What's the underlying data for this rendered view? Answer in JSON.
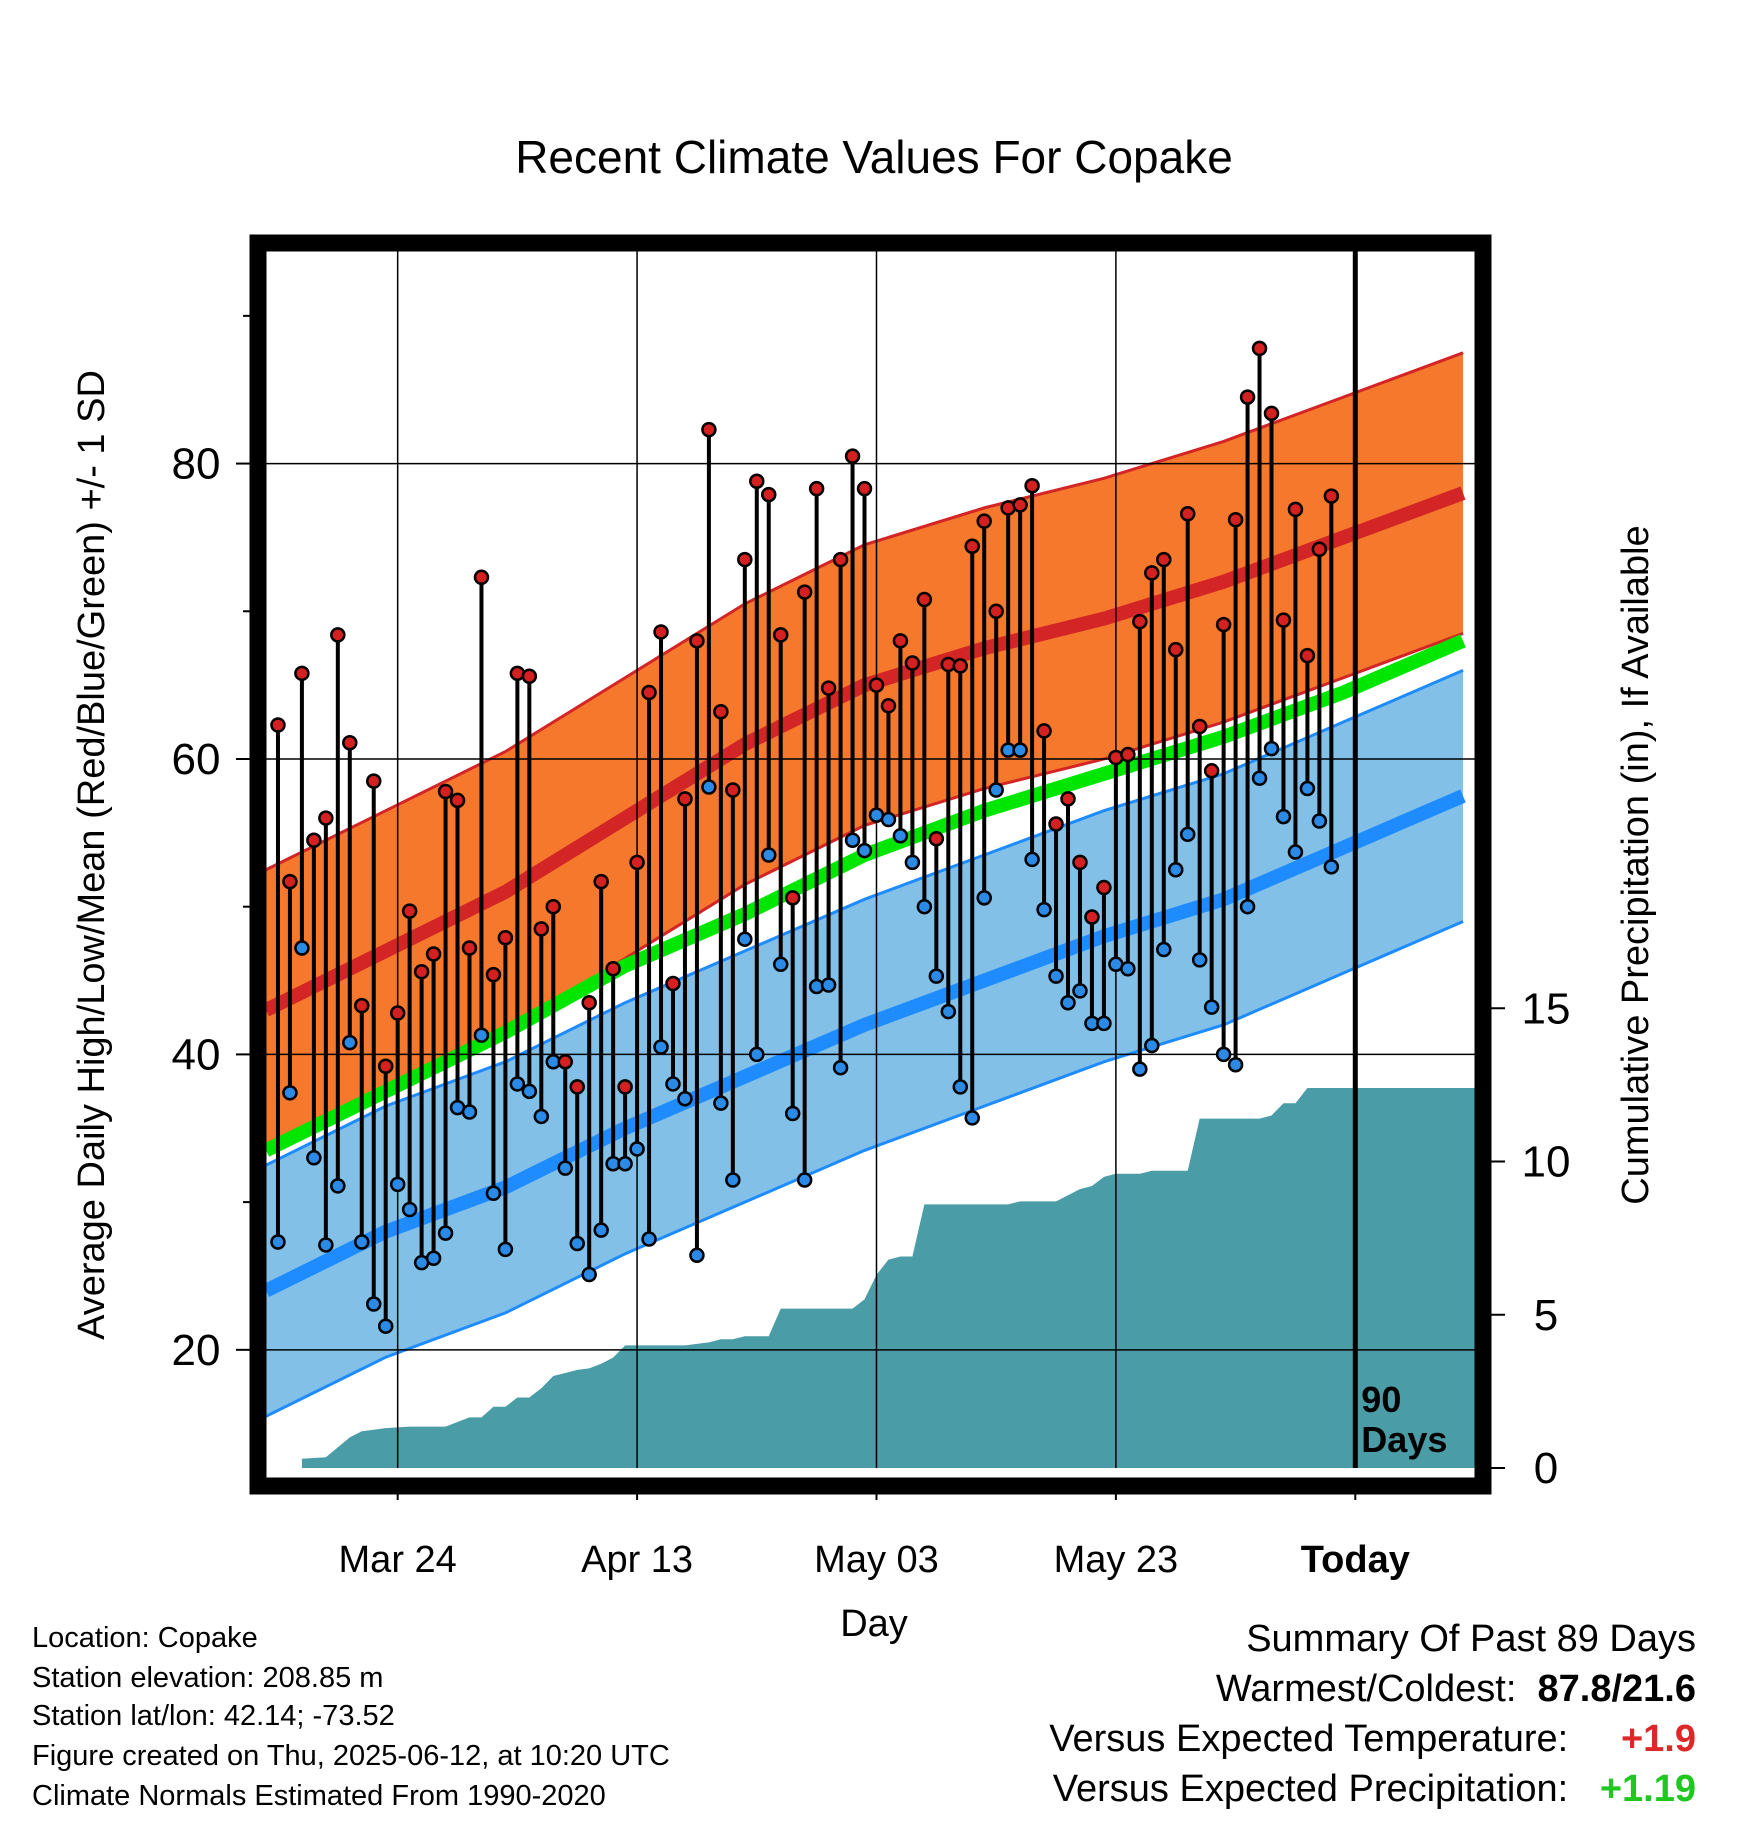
{
  "chart_data": {
    "type": "line",
    "title": "Recent Climate Values For Copake",
    "xlabel": "Day",
    "ylabel_left": "Average Daily High/Low/Mean (Red/Blue/Green) +/- 1 SD",
    "ylabel_right": "Cumulative Precipitation (in), If Available",
    "x_tick_labels": [
      "Mar 24",
      "Apr 13",
      "May 03",
      "May 23",
      "Today"
    ],
    "x_ticks_day": [
      11,
      31,
      51,
      71,
      91
    ],
    "y_left_ticks": [
      20,
      40,
      60,
      80
    ],
    "y_left_range": [
      12,
      95
    ],
    "y_right_ticks": [
      0,
      5,
      10,
      15
    ],
    "y_right_range": [
      0,
      40
    ],
    "x_range_day": [
      0,
      101
    ],
    "today_marker_label": "90 Days",
    "grid": true,
    "normals": {
      "day": [
        0,
        10,
        20,
        30,
        40,
        50,
        60,
        70,
        80,
        90,
        100
      ],
      "high_mean": [
        43,
        47,
        51,
        56,
        61,
        65,
        67.5,
        69.5,
        72,
        75,
        78
      ],
      "high_sd": 9.5,
      "low_mean": [
        24,
        28,
        31,
        35,
        38.5,
        42,
        45,
        48,
        50.5,
        54,
        57.5
      ],
      "low_sd": 8.5,
      "daily_mean": [
        33.5,
        37.5,
        41.5,
        46,
        49.5,
        53.5,
        56.5,
        59,
        61.5,
        64.5,
        68
      ]
    },
    "observed": {
      "high": [
        62.3,
        51.7,
        65.8,
        54.5,
        56,
        68.4,
        61.1,
        43.3,
        58.5,
        39.2,
        42.8,
        49.7,
        45.6,
        46.8,
        57.8,
        57.2,
        47.2,
        72.3,
        45.4,
        47.9,
        65.8,
        65.6,
        48.5,
        50,
        39.5,
        37.8,
        43.5,
        51.7,
        45.8,
        37.8,
        53,
        64.5,
        68.6,
        44.8,
        57.3,
        68,
        82.3,
        63.2,
        57.9,
        73.5,
        78.8,
        77.9,
        68.4,
        50.6,
        71.3,
        78.3,
        64.8,
        73.5,
        80.5,
        78.3,
        65,
        63.6,
        68,
        66.5,
        70.8,
        54.6,
        66.4,
        66.3,
        74.4,
        76.1,
        70,
        77,
        77.2,
        78.5,
        61.9,
        55.6,
        57.3,
        53,
        49.3,
        51.3,
        60.1,
        60.3,
        69.3,
        72.6,
        73.5,
        67.4,
        76.6,
        62.2,
        59.2,
        69.1,
        76.2,
        84.5,
        87.8,
        83.4,
        69.4,
        76.9,
        67,
        74.2,
        77.8
      ],
      "low": [
        27.3,
        37.4,
        47.2,
        33,
        27.1,
        31.1,
        40.8,
        27.3,
        23.1,
        21.6,
        31.2,
        29.5,
        25.9,
        26.2,
        27.9,
        36.4,
        36.1,
        41.3,
        30.6,
        26.8,
        38,
        37.5,
        35.8,
        39.5,
        32.3,
        27.2,
        25.1,
        28.1,
        32.6,
        32.6,
        33.6,
        27.5,
        40.5,
        38,
        37,
        26.4,
        58.1,
        36.7,
        31.5,
        47.8,
        40,
        53.5,
        46.1,
        36,
        31.5,
        44.6,
        44.7,
        39.1,
        54.5,
        53.8,
        56.2,
        55.9,
        54.8,
        53,
        50,
        45.3,
        42.9,
        37.8,
        35.7,
        50.6,
        57.9,
        60.6,
        60.6,
        53.2,
        49.8,
        45.3,
        43.5,
        44.3,
        42.1,
        42.1,
        46.1,
        45.8,
        39,
        40.6,
        47.1,
        52.5,
        54.9,
        46.4,
        43.2,
        40,
        39.3,
        50,
        58.7,
        60.7,
        56.1,
        53.7,
        58,
        55.8,
        52.7
      ]
    },
    "cumulative_precip": {
      "day": [
        3,
        5,
        7,
        8,
        9,
        10,
        12,
        15,
        17,
        18,
        19,
        20,
        21,
        22,
        23,
        24,
        25,
        26,
        27,
        28,
        29,
        30,
        31,
        33,
        35,
        37,
        38,
        39,
        40,
        41,
        42,
        43,
        44,
        45,
        46,
        47,
        48,
        49,
        50,
        51,
        52,
        53,
        54,
        55,
        56,
        57,
        58,
        59,
        60,
        61,
        62,
        63,
        64,
        65,
        66,
        67,
        68,
        69,
        70,
        71,
        72,
        73,
        74,
        75,
        76,
        77,
        78,
        79,
        80,
        81,
        82,
        83,
        84,
        85,
        86,
        87,
        88,
        89,
        90,
        95
      ],
      "inches": [
        0.3,
        0.35,
        1.0,
        1.2,
        1.25,
        1.3,
        1.35,
        1.35,
        1.65,
        1.65,
        2.0,
        2.0,
        2.3,
        2.3,
        2.6,
        3.0,
        3.1,
        3.2,
        3.25,
        3.4,
        3.6,
        4.0,
        4.0,
        4.0,
        4.0,
        4.1,
        4.2,
        4.2,
        4.3,
        4.3,
        4.3,
        5.2,
        5.2,
        5.2,
        5.2,
        5.2,
        5.2,
        5.2,
        5.5,
        6.3,
        6.8,
        6.9,
        6.9,
        8.6,
        8.6,
        8.6,
        8.6,
        8.6,
        8.6,
        8.6,
        8.6,
        8.7,
        8.7,
        8.7,
        8.7,
        8.9,
        9.1,
        9.2,
        9.5,
        9.6,
        9.6,
        9.6,
        9.7,
        9.7,
        9.7,
        9.7,
        11.4,
        11.4,
        11.4,
        11.4,
        11.4,
        11.4,
        11.5,
        11.9,
        11.9,
        12.4,
        12.4,
        12.4,
        12.4,
        12.4
      ]
    },
    "colors": {
      "high_band": "#f5782d",
      "high_line": "#d32525",
      "low_band": "#82c0e8",
      "low_line": "#1e8cff",
      "mean_line": "#00e600",
      "precip": "#4a9ca6",
      "high_dot": "#d42020",
      "low_dot": "#2a8ae6"
    }
  },
  "info": {
    "location": "Location: Copake",
    "elevation": "Station elevation: 208.85 m",
    "latlon": "Station lat/lon: 42.14; -73.52",
    "created": "Figure created on Thu, 2025-06-12, at 10:20 UTC",
    "normals": "Climate Normals Estimated From 1990-2020"
  },
  "summary": {
    "heading": "Summary Of Past 89 Days",
    "warm_label": "Warmest/Coldest:",
    "warm_value": "87.8/21.6",
    "temp_label": "Versus Expected Temperature:",
    "temp_value": "+1.9",
    "precip_label": "Versus Expected Precipitation:",
    "precip_value": "+1.19"
  }
}
